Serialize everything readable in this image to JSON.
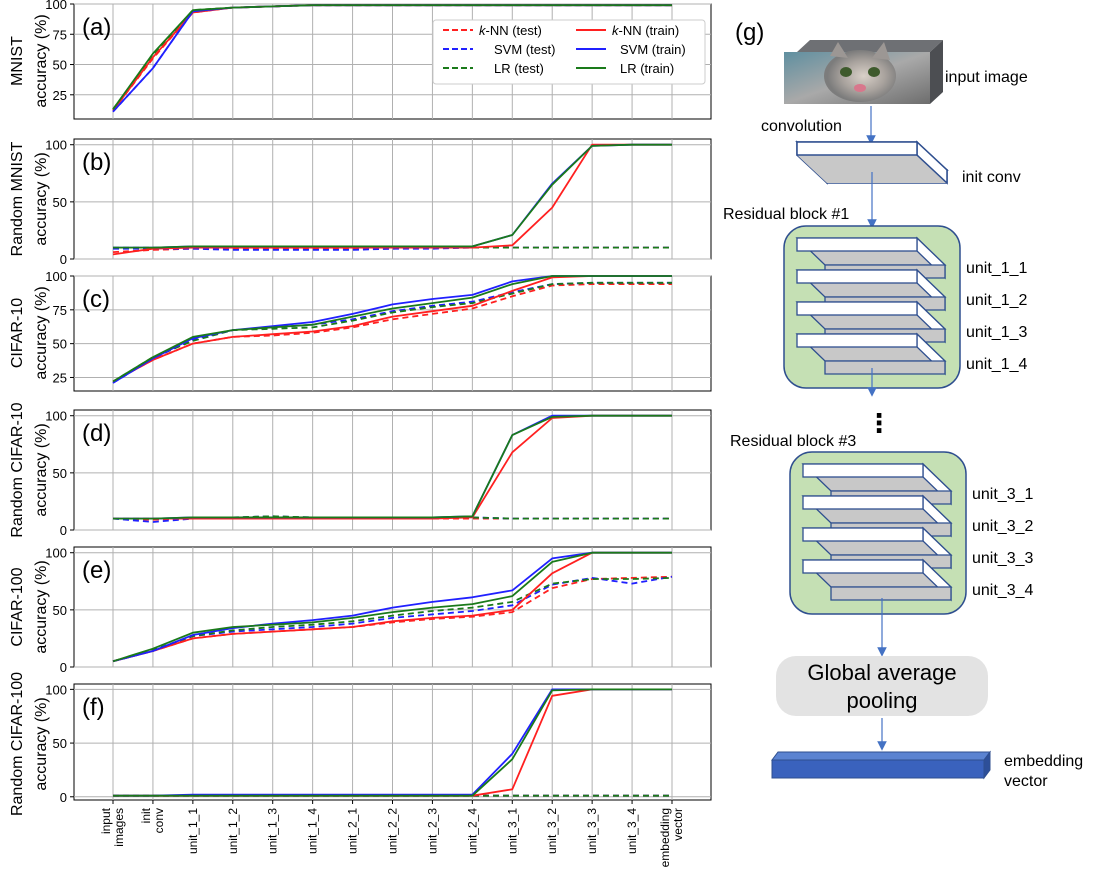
{
  "chart_data": [
    {
      "type": "line",
      "panel_label": "(a)",
      "row_label": "MNIST",
      "ylabel": "accuracy (%)",
      "ylim": [
        5,
        100
      ],
      "yticks": [
        25,
        50,
        75,
        100
      ],
      "grid": true,
      "legend_position": "top-right",
      "x": [
        "input images",
        "init conv",
        "unit_1_1",
        "unit_1_2",
        "unit_1_3",
        "unit_1_4",
        "unit_2_1",
        "unit_2_2",
        "unit_2_3",
        "unit_2_4",
        "unit_3_1",
        "unit_3_2",
        "unit_3_3",
        "unit_3_4",
        "embedding vector"
      ],
      "series": [
        {
          "name": "k-NN (test)",
          "color": "#ff2020",
          "dash": true,
          "values": [
            12,
            55,
            93,
            97,
            98,
            99,
            99,
            99,
            99,
            99,
            99,
            99,
            99,
            99,
            99
          ]
        },
        {
          "name": "SVM (test)",
          "color": "#2020ff",
          "dash": true,
          "values": [
            11,
            47,
            94,
            97,
            98,
            99,
            99,
            99,
            99,
            99,
            99,
            99,
            99,
            99,
            99
          ]
        },
        {
          "name": "LR (test)",
          "color": "#1a7a1a",
          "dash": true,
          "values": [
            13,
            58,
            95,
            97,
            98,
            99,
            99,
            99,
            99,
            99,
            99,
            99,
            99,
            99,
            99
          ]
        },
        {
          "name": "k-NN (train)",
          "color": "#ff2020",
          "dash": false,
          "values": [
            12,
            56,
            93,
            97,
            98,
            99,
            99,
            99,
            99,
            99,
            99,
            99,
            99,
            99,
            99
          ]
        },
        {
          "name": "SVM (train)",
          "color": "#2020ff",
          "dash": false,
          "values": [
            11,
            47,
            94,
            97,
            98,
            99,
            99,
            99,
            99,
            99,
            99,
            99,
            99,
            99,
            99
          ]
        },
        {
          "name": "LR (train)",
          "color": "#1a7a1a",
          "dash": false,
          "values": [
            13,
            59,
            95,
            97,
            98,
            99,
            99,
            99,
            99,
            99,
            99,
            99,
            99,
            99,
            99
          ]
        }
      ]
    },
    {
      "type": "line",
      "panel_label": "(b)",
      "row_label": "Random MNIST",
      "ylabel": "accuracy (%)",
      "ylim": [
        0,
        105
      ],
      "yticks": [
        0,
        50,
        100
      ],
      "grid": true,
      "x": [
        "input images",
        "init conv",
        "unit_1_1",
        "unit_1_2",
        "unit_1_3",
        "unit_1_4",
        "unit_2_1",
        "unit_2_2",
        "unit_2_3",
        "unit_2_4",
        "unit_3_1",
        "unit_3_2",
        "unit_3_3",
        "unit_3_4",
        "embedding vector"
      ],
      "series": [
        {
          "name": "k-NN (test)",
          "color": "#ff2020",
          "dash": true,
          "values": [
            6,
            8,
            9,
            9,
            9,
            9,
            9,
            9,
            10,
            10,
            10,
            10,
            10,
            10,
            10
          ]
        },
        {
          "name": "SVM (test)",
          "color": "#2020ff",
          "dash": true,
          "values": [
            9,
            9,
            9,
            8,
            8,
            8,
            8,
            9,
            9,
            10,
            10,
            10,
            10,
            10,
            10
          ]
        },
        {
          "name": "LR (test)",
          "color": "#1a7a1a",
          "dash": true,
          "values": [
            10,
            10,
            10,
            10,
            10,
            10,
            10,
            10,
            10,
            10,
            10,
            10,
            10,
            10,
            10
          ]
        },
        {
          "name": "k-NN (train)",
          "color": "#ff2020",
          "dash": false,
          "values": [
            4,
            9,
            10,
            10,
            10,
            10,
            10,
            10,
            10,
            10,
            12,
            45,
            100,
            100,
            100
          ]
        },
        {
          "name": "SVM (train)",
          "color": "#2020ff",
          "dash": false,
          "values": [
            10,
            10,
            11,
            11,
            11,
            11,
            11,
            11,
            11,
            11,
            21,
            66,
            99,
            100,
            100
          ]
        },
        {
          "name": "LR (train)",
          "color": "#1a7a1a",
          "dash": false,
          "values": [
            10,
            10,
            11,
            11,
            11,
            11,
            11,
            11,
            11,
            11,
            21,
            65,
            99,
            100,
            100
          ]
        }
      ]
    },
    {
      "type": "line",
      "panel_label": "(c)",
      "row_label": "CIFAR-10",
      "ylabel": "accuracy (%)",
      "ylim": [
        15,
        100
      ],
      "yticks": [
        25,
        50,
        75,
        100
      ],
      "grid": true,
      "x": [
        "input images",
        "init conv",
        "unit_1_1",
        "unit_1_2",
        "unit_1_3",
        "unit_1_4",
        "unit_2_1",
        "unit_2_2",
        "unit_2_3",
        "unit_2_4",
        "unit_3_1",
        "unit_3_2",
        "unit_3_3",
        "unit_3_4",
        "embedding vector"
      ],
      "series": [
        {
          "name": "k-NN (test)",
          "color": "#ff2020",
          "dash": true,
          "values": [
            22,
            38,
            50,
            55,
            56,
            58,
            62,
            68,
            72,
            76,
            85,
            93,
            94,
            94,
            94
          ]
        },
        {
          "name": "SVM (test)",
          "color": "#2020ff",
          "dash": true,
          "values": [
            21,
            39,
            53,
            60,
            62,
            64,
            68,
            74,
            78,
            81,
            88,
            94,
            95,
            95,
            95
          ]
        },
        {
          "name": "LR (test)",
          "color": "#1a7a1a",
          "dash": true,
          "values": [
            22,
            40,
            52,
            60,
            61,
            62,
            67,
            73,
            77,
            80,
            87,
            94,
            95,
            95,
            95
          ]
        },
        {
          "name": "k-NN (train)",
          "color": "#ff2020",
          "dash": false,
          "values": [
            22,
            38,
            50,
            55,
            57,
            59,
            63,
            70,
            74,
            78,
            89,
            99,
            100,
            100,
            100
          ]
        },
        {
          "name": "SVM (train)",
          "color": "#2020ff",
          "dash": false,
          "values": [
            21,
            39,
            54,
            60,
            63,
            66,
            72,
            79,
            83,
            86,
            96,
            100,
            100,
            100,
            100
          ]
        },
        {
          "name": "LR (train)",
          "color": "#1a7a1a",
          "dash": false,
          "values": [
            22,
            40,
            55,
            60,
            62,
            64,
            70,
            76,
            80,
            84,
            94,
            100,
            100,
            100,
            100
          ]
        }
      ]
    },
    {
      "type": "line",
      "panel_label": "(d)",
      "row_label": "Random CIFAR-10",
      "ylabel": "accuracy (%)",
      "ylim": [
        0,
        105
      ],
      "yticks": [
        0,
        50,
        100
      ],
      "grid": true,
      "x": [
        "input images",
        "init conv",
        "unit_1_1",
        "unit_1_2",
        "unit_1_3",
        "unit_1_4",
        "unit_2_1",
        "unit_2_2",
        "unit_2_3",
        "unit_2_4",
        "unit_3_1",
        "unit_3_2",
        "unit_3_3",
        "unit_3_4",
        "embedding vector"
      ],
      "series": [
        {
          "name": "k-NN (test)",
          "color": "#ff2020",
          "dash": true,
          "values": [
            10,
            9,
            10,
            10,
            10,
            10,
            10,
            10,
            10,
            10,
            10,
            10,
            10,
            10,
            10
          ]
        },
        {
          "name": "SVM (test)",
          "color": "#2020ff",
          "dash": true,
          "values": [
            10,
            7,
            10,
            11,
            12,
            11,
            11,
            11,
            11,
            11,
            10,
            10,
            10,
            10,
            10
          ]
        },
        {
          "name": "LR (test)",
          "color": "#1a7a1a",
          "dash": true,
          "values": [
            10,
            10,
            10,
            11,
            12,
            11,
            11,
            11,
            11,
            11,
            10,
            10,
            10,
            10,
            10
          ]
        },
        {
          "name": "k-NN (train)",
          "color": "#ff2020",
          "dash": false,
          "values": [
            10,
            10,
            10,
            10,
            10,
            10,
            10,
            10,
            10,
            11,
            68,
            98,
            100,
            100,
            100
          ]
        },
        {
          "name": "SVM (train)",
          "color": "#2020ff",
          "dash": false,
          "values": [
            10,
            10,
            11,
            11,
            11,
            11,
            11,
            11,
            11,
            12,
            83,
            100,
            100,
            100,
            100
          ]
        },
        {
          "name": "LR (train)",
          "color": "#1a7a1a",
          "dash": false,
          "values": [
            10,
            10,
            11,
            11,
            11,
            11,
            11,
            11,
            11,
            12,
            83,
            99,
            100,
            100,
            100
          ]
        }
      ]
    },
    {
      "type": "line",
      "panel_label": "(e)",
      "row_label": "CIFAR-100",
      "ylabel": "accuracy (%)",
      "ylim": [
        0,
        105
      ],
      "yticks": [
        0,
        50,
        100
      ],
      "grid": true,
      "x": [
        "input images",
        "init conv",
        "unit_1_1",
        "unit_1_2",
        "unit_1_3",
        "unit_1_4",
        "unit_2_1",
        "unit_2_2",
        "unit_2_3",
        "unit_2_4",
        "unit_3_1",
        "unit_3_2",
        "unit_3_3",
        "unit_3_4",
        "embedding vector"
      ],
      "series": [
        {
          "name": "k-NN (test)",
          "color": "#ff2020",
          "dash": true,
          "values": [
            5,
            14,
            25,
            29,
            31,
            33,
            35,
            39,
            42,
            44,
            48,
            69,
            77,
            78,
            79
          ]
        },
        {
          "name": "SVM (test)",
          "color": "#2020ff",
          "dash": true,
          "values": [
            5,
            14,
            27,
            31,
            33,
            35,
            38,
            43,
            46,
            49,
            54,
            72,
            78,
            73,
            79
          ]
        },
        {
          "name": "LR (test)",
          "color": "#1a7a1a",
          "dash": true,
          "values": [
            5,
            15,
            27,
            32,
            35,
            37,
            40,
            45,
            49,
            52,
            57,
            73,
            77,
            77,
            78
          ]
        },
        {
          "name": "k-NN (train)",
          "color": "#ff2020",
          "dash": false,
          "values": [
            5,
            14,
            25,
            29,
            31,
            33,
            35,
            40,
            43,
            45,
            50,
            82,
            100,
            100,
            100
          ]
        },
        {
          "name": "SVM (train)",
          "color": "#2020ff",
          "dash": false,
          "values": [
            5,
            14,
            28,
            34,
            38,
            41,
            45,
            52,
            57,
            61,
            67,
            95,
            100,
            100,
            100
          ]
        },
        {
          "name": "LR (train)",
          "color": "#1a7a1a",
          "dash": false,
          "values": [
            5,
            16,
            30,
            35,
            37,
            39,
            43,
            48,
            52,
            55,
            62,
            92,
            100,
            100,
            100
          ]
        }
      ]
    },
    {
      "type": "line",
      "panel_label": "(f)",
      "row_label": "Random CIFAR-100",
      "ylabel": "accuracy (%)",
      "ylim": [
        -3,
        105
      ],
      "yticks": [
        0,
        50,
        100
      ],
      "grid": true,
      "x": [
        "input images",
        "init conv",
        "unit_1_1",
        "unit_1_2",
        "unit_1_3",
        "unit_1_4",
        "unit_2_1",
        "unit_2_2",
        "unit_2_3",
        "unit_2_4",
        "unit_3_1",
        "unit_3_2",
        "unit_3_3",
        "unit_3_4",
        "embedding vector"
      ],
      "series": [
        {
          "name": "k-NN (test)",
          "color": "#ff2020",
          "dash": true,
          "values": [
            1,
            1,
            1,
            1,
            1,
            1,
            1,
            1,
            1,
            1,
            1,
            1,
            1,
            1,
            1
          ]
        },
        {
          "name": "SVM (test)",
          "color": "#2020ff",
          "dash": true,
          "values": [
            1,
            1,
            1,
            1,
            1,
            1,
            1,
            1,
            1,
            1,
            1,
            1,
            1,
            1,
            1
          ]
        },
        {
          "name": "LR (test)",
          "color": "#1a7a1a",
          "dash": true,
          "values": [
            1,
            1,
            1,
            1,
            1,
            1,
            1,
            1,
            1,
            1,
            1,
            1,
            1,
            1,
            1
          ]
        },
        {
          "name": "k-NN (train)",
          "color": "#ff2020",
          "dash": false,
          "values": [
            1,
            1,
            1,
            1,
            1,
            1,
            1,
            1,
            1,
            1,
            7,
            94,
            100,
            100,
            100
          ]
        },
        {
          "name": "SVM (train)",
          "color": "#2020ff",
          "dash": false,
          "values": [
            1,
            1,
            2,
            2,
            2,
            2,
            2,
            2,
            2,
            2,
            40,
            100,
            100,
            100,
            100
          ]
        },
        {
          "name": "LR (train)",
          "color": "#1a7a1a",
          "dash": false,
          "values": [
            1,
            1,
            1,
            1,
            1,
            1,
            1,
            1,
            1,
            1,
            35,
            99,
            100,
            100,
            100
          ]
        }
      ]
    }
  ],
  "diagram": {
    "panel_label": "(g)",
    "input_image_label": "input image",
    "convolution_label": "convolution",
    "init_conv_label": "init conv",
    "block1_title": "Residual block #1",
    "block1_units": [
      "unit_1_1",
      "unit_1_2",
      "unit_1_3",
      "unit_1_4"
    ],
    "ellipsis": "⋮",
    "block3_title": "Residual block #3",
    "block3_units": [
      "unit_3_1",
      "unit_3_2",
      "unit_3_3",
      "unit_3_4"
    ],
    "pooling_line1": "Global average",
    "pooling_line2": "pooling",
    "embedding_line1": "embedding",
    "embedding_line2": "vector"
  }
}
